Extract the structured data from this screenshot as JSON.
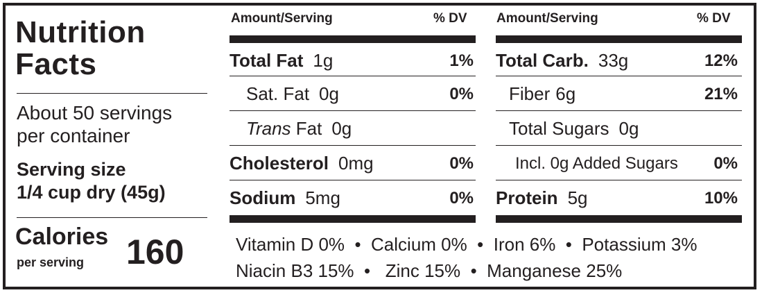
{
  "title": {
    "line1": "Nutrition",
    "line2": "Facts"
  },
  "servings": {
    "line1": "About 50 servings",
    "line2": "per container"
  },
  "serving_size": {
    "line1": "Serving size",
    "line2": "1/4 cup dry (45g)"
  },
  "calories": {
    "label": "Calories",
    "sublabel": "per serving",
    "value": "160"
  },
  "headers": {
    "amount": "Amount/Serving",
    "dv": "% DV"
  },
  "left_rows": [
    {
      "name": "Total Fat",
      "amount": "1g",
      "dv": "1%"
    },
    {
      "name": "Sat. Fat",
      "amount": "0g",
      "dv": "0%"
    },
    {
      "name_italic": "Trans",
      "name": " Fat",
      "amount": "0g",
      "dv": ""
    },
    {
      "name": "Cholesterol",
      "amount": "0mg",
      "dv": "0%"
    },
    {
      "name": "Sodium",
      "amount": "5mg",
      "dv": "0%"
    }
  ],
  "right_rows": [
    {
      "name": "Total Carb.",
      "amount": "33g",
      "dv": "12%"
    },
    {
      "name": "Fiber",
      "amount": "6g",
      "dv": "21%"
    },
    {
      "name": "Total Sugars",
      "amount": "0g",
      "dv": ""
    },
    {
      "name": "Incl. 0g Added Sugars",
      "amount": "",
      "dv": "0%"
    },
    {
      "name": "Protein",
      "amount": "5g",
      "dv": "10%"
    }
  ],
  "vitamins": {
    "line1": "Vitamin D 0%  •  Calcium 0%  •  Iron 6%  •  Potassium 3%",
    "line2": "Niacin B3 15%  •   Zinc 15%  •  Manganese 25%"
  }
}
